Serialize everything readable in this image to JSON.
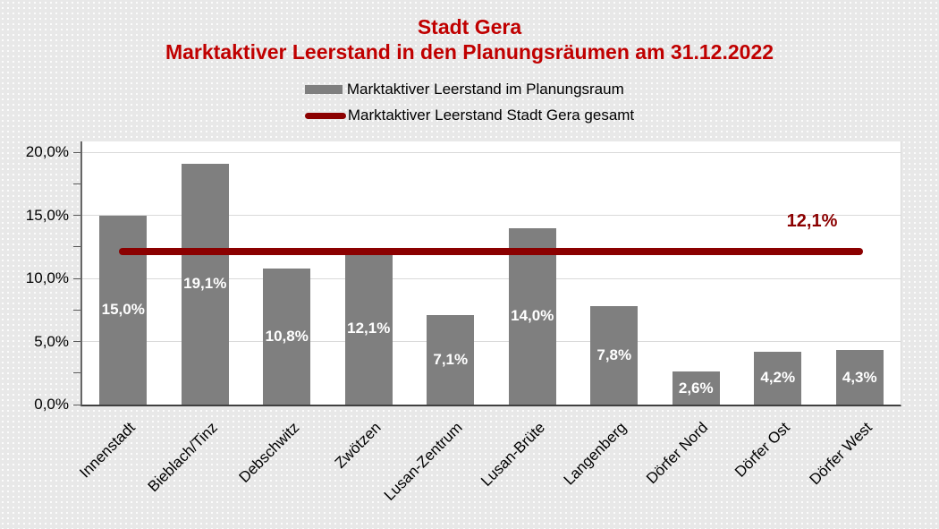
{
  "title": {
    "line1": "Stadt Gera",
    "line2": "Marktaktiver Leerstand in den Planungsräumen am 31.12.2022",
    "color": "#C00000"
  },
  "legend": [
    {
      "label": "Marktaktiver Leerstand im Planungsraum",
      "swatch": "bar",
      "color": "#7F7F7F"
    },
    {
      "label": "Marktaktiver Leerstand Stadt Gera gesamt",
      "swatch": "line",
      "color": "#8B0000"
    }
  ],
  "chart_data": {
    "type": "bar",
    "title": "Stadt Gera — Marktaktiver Leerstand in den Planungsräumen am 31.12.2022",
    "categories": [
      "Innenstadt",
      "Bieblach/Tinz",
      "Debschwitz",
      "Zwötzen",
      "Lusan-Zentrum",
      "Lusan-Brüte",
      "Langenberg",
      "Dörfer Nord",
      "Dörfer Ost",
      "Dörfer West"
    ],
    "series": [
      {
        "name": "Marktaktiver Leerstand im Planungsraum",
        "type": "bar",
        "values": [
          15.0,
          19.1,
          10.8,
          12.1,
          7.1,
          14.0,
          7.8,
          2.6,
          4.2,
          4.3
        ],
        "labels": [
          "15,0%",
          "19,1%",
          "10,8%",
          "12,1%",
          "7,1%",
          "14,0%",
          "7,8%",
          "2,6%",
          "4,2%",
          "4,3%"
        ],
        "color": "#7F7F7F"
      },
      {
        "name": "Marktaktiver Leerstand Stadt Gera gesamt",
        "type": "line",
        "value": 12.1,
        "label": "12,1%",
        "color": "#8B0000"
      }
    ],
    "y_axis": {
      "min": 0,
      "max": 20,
      "major_step": 5,
      "minor_step": 2.5,
      "ticks": [
        {
          "value": 0,
          "label": "0,0%"
        },
        {
          "value": 5,
          "label": "5,0%"
        },
        {
          "value": 10,
          "label": "10,0%"
        },
        {
          "value": 15,
          "label": "15,0%"
        },
        {
          "value": 20,
          "label": "20,0%"
        }
      ],
      "minor_ticks": [
        2.5,
        7.5,
        12.5,
        17.5
      ],
      "grid": true
    },
    "xlabel": "",
    "ylabel": "",
    "legend_position": "top"
  }
}
